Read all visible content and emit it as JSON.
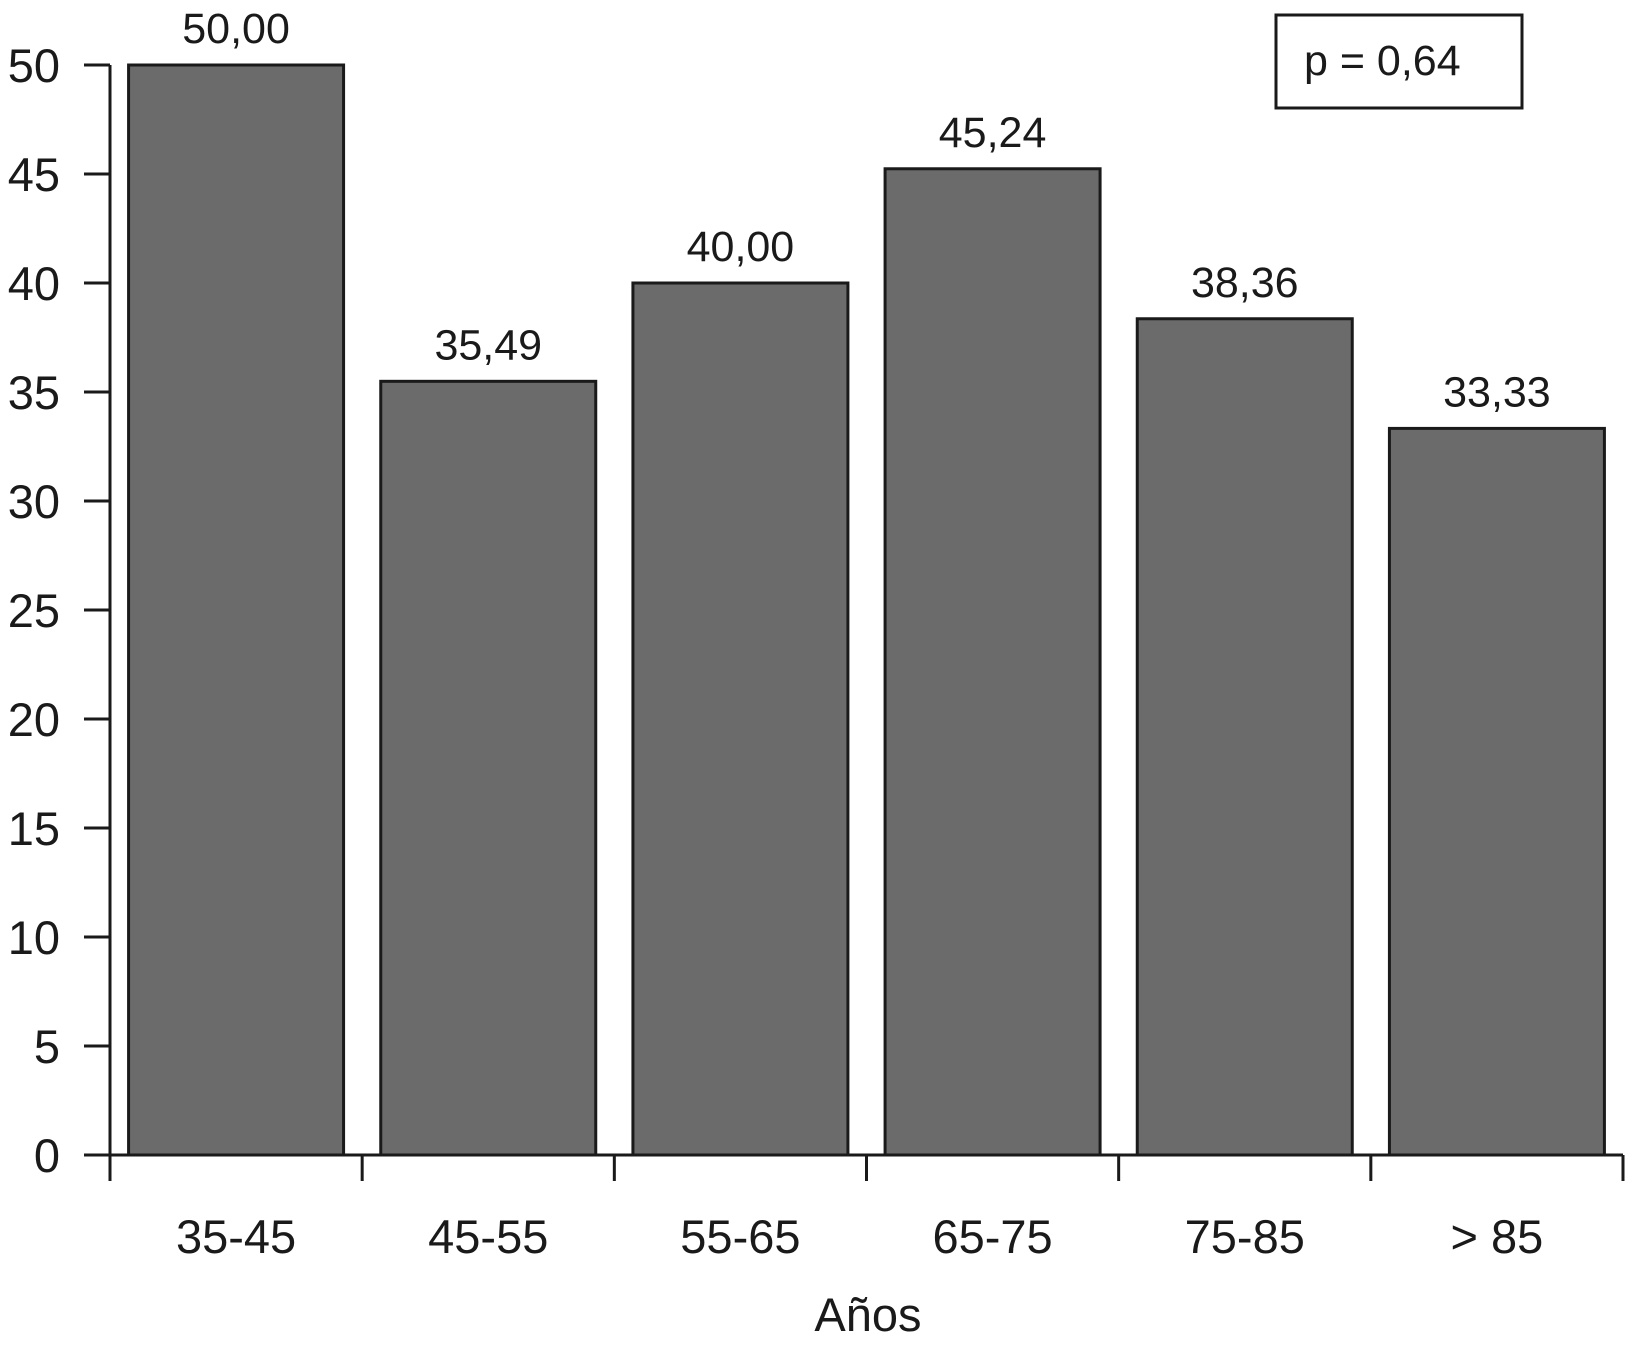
{
  "chart_data": {
    "type": "bar",
    "title": "",
    "xlabel": "Años",
    "ylabel": "",
    "categories": [
      "35-45",
      "45-55",
      "55-65",
      "65-75",
      "75-85",
      "> 85"
    ],
    "values": [
      50.0,
      35.49,
      40.0,
      45.24,
      38.36,
      33.33
    ],
    "value_labels": [
      "50,00",
      "35,49",
      "40,00",
      "45,24",
      "38,36",
      "33,33"
    ],
    "ylim": [
      0,
      50
    ],
    "yticks": [
      0,
      5,
      10,
      15,
      20,
      25,
      30,
      35,
      40,
      45,
      50
    ],
    "ytick_labels": [
      "0",
      "5",
      "10",
      "15",
      "20",
      "25",
      "30",
      "35",
      "40",
      "45",
      "50"
    ],
    "grid": false,
    "legend": "none",
    "annotation": "p = 0,64",
    "annotation_position": "top-right",
    "bar_color": "#6b6b6b",
    "edge_color": "#1a1a1a"
  }
}
